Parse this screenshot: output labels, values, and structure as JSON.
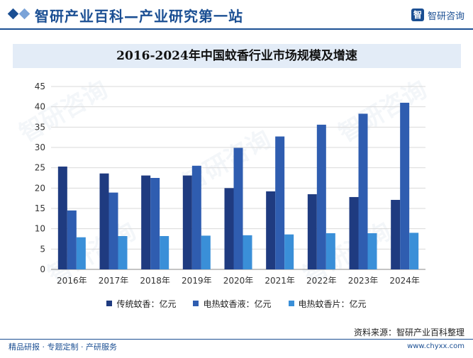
{
  "header": {
    "site_title": "智研产业百科—产业研究第一站",
    "brand_logo": "智",
    "brand_name": "智研咨询"
  },
  "watermark_text": "智研咨询",
  "chart_data": {
    "type": "bar",
    "title": "2016-2024年中国蚊香行业市场规模及增速",
    "categories": [
      "2016年",
      "2017年",
      "2018年",
      "2019年",
      "2020年",
      "2021年",
      "2022年",
      "2023年",
      "2024年"
    ],
    "series": [
      {
        "name": "传统蚊香：亿元",
        "color": "#1f3b80",
        "values": [
          25.3,
          23.6,
          23.1,
          23.1,
          20.0,
          19.2,
          18.5,
          17.8,
          17.1
        ]
      },
      {
        "name": "电热蚊香液：亿元",
        "color": "#2f5db0",
        "values": [
          14.5,
          18.9,
          22.5,
          25.5,
          29.9,
          32.7,
          35.6,
          38.3,
          41.0
        ]
      },
      {
        "name": "电热蚊香片：亿元",
        "color": "#3a8fd8",
        "values": [
          7.9,
          8.2,
          8.2,
          8.3,
          8.4,
          8.6,
          8.9,
          8.9,
          9.0
        ]
      }
    ],
    "ylim": [
      0,
      45
    ],
    "yticks": [
      0,
      5,
      10,
      15,
      20,
      25,
      30,
      35,
      40,
      45
    ],
    "grid": true,
    "legend": "bottom"
  },
  "footer": {
    "source": "资料来源：智研产业百科整理",
    "left": "精品研报 · 专题定制 · 产研服务",
    "right": "www.chyxx.com"
  }
}
